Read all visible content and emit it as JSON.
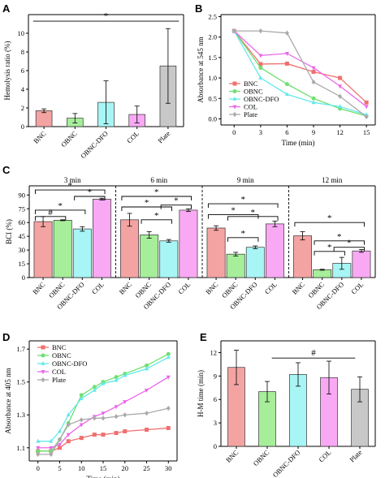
{
  "panel_letters": {
    "A": "A",
    "B": "B",
    "C": "C",
    "D": "D",
    "E": "E"
  },
  "chart_data": [
    {
      "id": "A",
      "type": "bar",
      "ylabel": "Hemolysis ratio (%)",
      "ylim": [
        0,
        12
      ],
      "yticks": [
        0,
        2,
        4,
        6,
        8,
        10
      ],
      "categories": [
        "BNC",
        "OBNC",
        "OBNC-DFO",
        "COL",
        "Plate"
      ],
      "values": [
        1.7,
        0.9,
        2.6,
        1.3,
        6.5
      ],
      "errors": [
        0.2,
        0.5,
        2.3,
        0.9,
        4.0
      ],
      "colors": [
        "#f4a3a3",
        "#a6ee9a",
        "#a8f5f5",
        "#f9a9f4",
        "#c8c8c8"
      ],
      "annotations": [
        {
          "text": "*",
          "type": "line",
          "from": 0,
          "to": 4,
          "y": 11.3
        }
      ]
    },
    {
      "id": "B",
      "type": "line",
      "xlabel": "Time (min)",
      "ylabel": "Absorbance at 545 nm",
      "xlim": [
        -1.5,
        16
      ],
      "ylim": [
        -0.15,
        2.55
      ],
      "xticks": [
        0,
        3,
        6,
        9,
        12,
        15
      ],
      "yticks": [
        0.0,
        0.5,
        1.0,
        1.5,
        2.0,
        2.5
      ],
      "x": [
        0,
        3,
        6,
        9,
        12,
        15
      ],
      "legend_position": "top-right",
      "series": [
        {
          "name": "BNC",
          "color": "#f07070",
          "marker": "square",
          "values": [
            2.15,
            1.34,
            1.35,
            1.15,
            1.0,
            0.4
          ]
        },
        {
          "name": "OBNC",
          "color": "#6fe070",
          "marker": "circle",
          "values": [
            2.15,
            1.25,
            0.85,
            0.5,
            0.25,
            0.07
          ]
        },
        {
          "name": "OBNC-DFO",
          "color": "#66e8e8",
          "marker": "triangle-up",
          "values": [
            2.15,
            1.0,
            0.6,
            0.4,
            0.3,
            0.1
          ]
        },
        {
          "name": "COL",
          "color": "#ea66ea",
          "marker": "triangle-down",
          "values": [
            2.15,
            1.55,
            1.6,
            1.25,
            0.8,
            0.3
          ]
        },
        {
          "name": "Plate",
          "color": "#aaaaaa",
          "marker": "diamond",
          "values": [
            2.15,
            2.15,
            2.1,
            0.9,
            0.55,
            0.05
          ]
        }
      ]
    },
    {
      "id": "C",
      "type": "bar",
      "ylabel": "BCI (%)",
      "ylim": [
        0,
        100
      ],
      "yticks": [
        0,
        15,
        30,
        45,
        60,
        75,
        90
      ],
      "groups": [
        {
          "title": "3 min",
          "categories": [
            "BNC",
            "OBNC",
            "OBNC-DFO",
            "COL"
          ],
          "values": [
            61,
            62.5,
            53,
            85.5
          ],
          "errors": [
            5.5,
            0.5,
            2.5,
            1.0
          ],
          "annotations": [
            {
              "text": "*",
              "from": 0,
              "to": 3,
              "y": 95.5
            },
            {
              "text": "*",
              "from": 0,
              "to": 2,
              "y": 73.5
            },
            {
              "text": "#",
              "from": 0,
              "to": 1,
              "y": 66.5
            },
            {
              "text": "*",
              "from": 2,
              "to": 3,
              "y": 88.5
            }
          ]
        },
        {
          "title": "6 min",
          "categories": [
            "BNC",
            "OBNC",
            "OBNC-DFO",
            "COL"
          ],
          "values": [
            63,
            46.5,
            40,
            73.5
          ],
          "errors": [
            7.0,
            3.5,
            1.5,
            1.5
          ],
          "annotations": [
            {
              "text": "*",
              "from": 0,
              "to": 2,
              "y": 77
            },
            {
              "text": "*",
              "from": 1,
              "to": 2,
              "y": 63
            },
            {
              "text": "*",
              "from": 0,
              "to": 3,
              "y": 88.5
            },
            {
              "text": "*",
              "from": 2,
              "to": 3,
              "y": 79
            }
          ]
        },
        {
          "title": "9 min",
          "categories": [
            "BNC",
            "OBNC",
            "OBNC-DFO",
            "COL"
          ],
          "values": [
            54,
            25.5,
            33,
            58.5
          ],
          "errors": [
            2.5,
            2.0,
            1.5,
            3.0
          ],
          "annotations": [
            {
              "text": "*",
              "from": 0,
              "to": 3,
              "y": 80.5
            },
            {
              "text": "*",
              "from": 0,
              "to": 2,
              "y": 68.5
            },
            {
              "text": "*",
              "from": 1,
              "to": 3,
              "y": 66.5
            },
            {
              "text": "*",
              "from": 1,
              "to": 2,
              "y": 43.5
            }
          ]
        },
        {
          "title": "12 min",
          "categories": [
            "BNC",
            "OBNC",
            "OBNC-DFO",
            "COL"
          ],
          "values": [
            45.5,
            8.5,
            15.5,
            29
          ],
          "errors": [
            4.5,
            0.5,
            6.5,
            1.5
          ],
          "annotations": [
            {
              "text": "*",
              "from": 0,
              "to": 3,
              "y": 60
            },
            {
              "text": "*",
              "from": 1,
              "to": 3,
              "y": 40
            },
            {
              "text": "*",
              "from": 1,
              "to": 2,
              "y": 28.5
            },
            {
              "text": "*",
              "from": 2,
              "to": 3,
              "y": 33
            }
          ]
        }
      ],
      "colors": [
        "#f4a3a3",
        "#a6ee9a",
        "#a8f5f5",
        "#f9a9f4"
      ]
    },
    {
      "id": "D",
      "type": "line",
      "xlabel": "Time (min)",
      "ylabel": "Absorbance at 405 nm",
      "xlim": [
        -2,
        32
      ],
      "ylim": [
        1.02,
        1.75
      ],
      "xticks": [
        0,
        5,
        10,
        15,
        20,
        25,
        30
      ],
      "yticks": [
        1.1,
        1.3,
        1.5,
        1.7
      ],
      "x": [
        0,
        3,
        5,
        7,
        10,
        13,
        15,
        18,
        20,
        25,
        30
      ],
      "legend_position": "top-left",
      "series": [
        {
          "name": "BNC",
          "color": "#f07070",
          "marker": "square",
          "values": [
            1.08,
            1.08,
            1.1,
            1.14,
            1.16,
            1.18,
            1.18,
            1.19,
            1.2,
            1.21,
            1.22
          ]
        },
        {
          "name": "OBNC",
          "color": "#6fe070",
          "marker": "circle",
          "values": [
            1.08,
            1.08,
            1.15,
            1.25,
            1.42,
            1.47,
            1.5,
            1.53,
            1.55,
            1.6,
            1.67
          ]
        },
        {
          "name": "OBNC-DFO",
          "color": "#66e8e8",
          "marker": "triangle-up",
          "values": [
            1.14,
            1.14,
            1.2,
            1.3,
            1.4,
            1.45,
            1.49,
            1.51,
            1.54,
            1.58,
            1.65
          ]
        },
        {
          "name": "COL",
          "color": "#ea66ea",
          "marker": "triangle-down",
          "values": [
            1.1,
            1.1,
            1.12,
            1.18,
            1.24,
            1.29,
            1.31,
            1.35,
            1.38,
            1.45,
            1.53
          ]
        },
        {
          "name": "Plate",
          "color": "#aaaaaa",
          "marker": "diamond",
          "values": [
            1.06,
            1.06,
            1.15,
            1.24,
            1.27,
            1.28,
            1.28,
            1.29,
            1.3,
            1.31,
            1.34
          ]
        }
      ]
    },
    {
      "id": "E",
      "type": "bar",
      "ylabel": "H-M time (min)",
      "ylim": [
        0,
        13.5
      ],
      "yticks": [
        0,
        3,
        6,
        9,
        12
      ],
      "categories": [
        "BNC",
        "OBNC",
        "OBNC-DFO",
        "COL",
        "Plate"
      ],
      "values": [
        10.1,
        7.0,
        9.2,
        8.8,
        7.3
      ],
      "errors": [
        2.2,
        1.3,
        1.5,
        2.1,
        1.6
      ],
      "colors": [
        "#f4a3a3",
        "#a6ee9a",
        "#a8f5f5",
        "#f9a9f4",
        "#c8c8c8"
      ],
      "annotations": [
        {
          "text": "#",
          "type": "line",
          "from": 1.5,
          "to": 3.5,
          "y": 11.3
        }
      ]
    }
  ]
}
